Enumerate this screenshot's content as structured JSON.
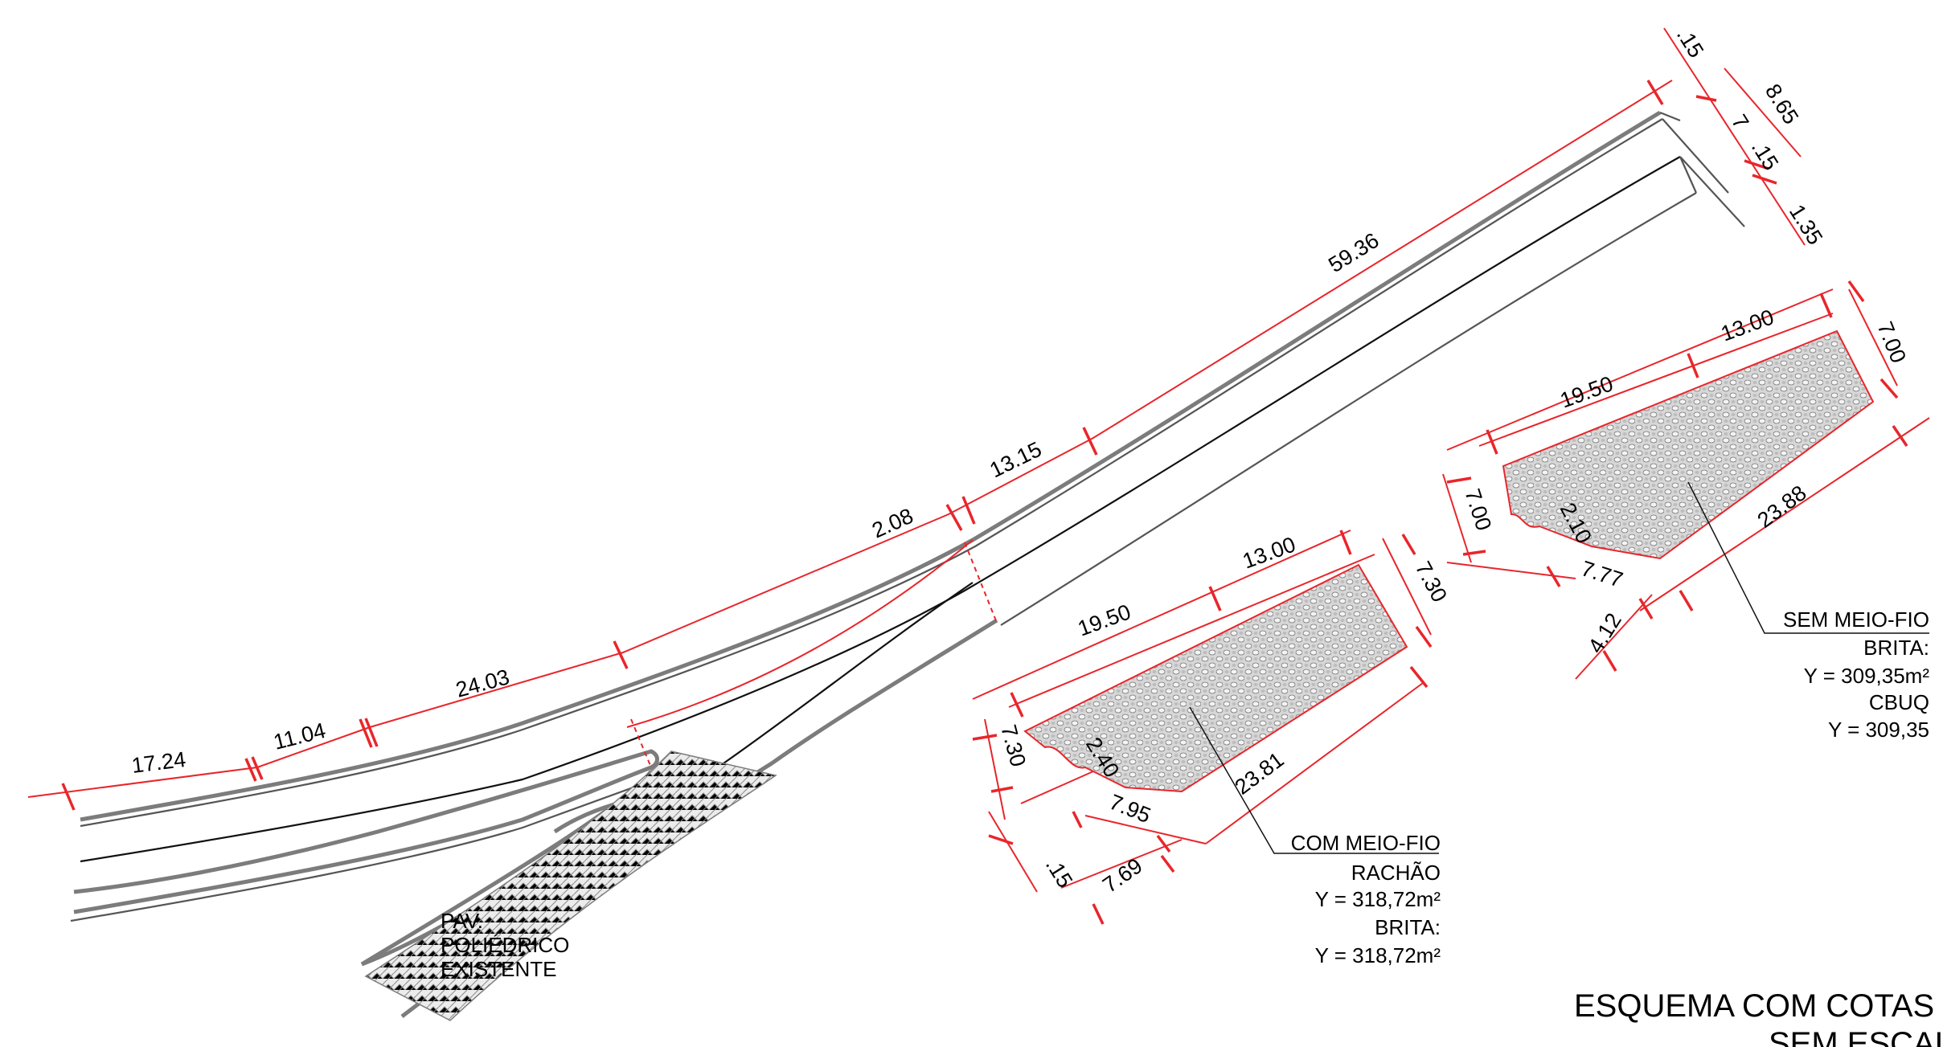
{
  "title": "ESQUEMA COM COTAS",
  "subtitle": "SEM ESCALA",
  "road_dimensions": [
    "17.24",
    "11.04",
    "24.03",
    "2.08",
    "13.15",
    "59.36",
    ".15",
    "8.65",
    "7",
    ".15",
    "1.35"
  ],
  "existing_pavement": [
    "PAV.",
    "POLIÉDRICO",
    "EXISTENTE"
  ],
  "area_com_meio_fio": {
    "dimensions": [
      "13.00",
      "19.50",
      "7.30",
      "23.81",
      "7.30",
      "2.40",
      "7.95",
      "7.69",
      ".15"
    ],
    "labels": [
      "COM MEIO-FIO",
      "RACHÃO",
      "Y = 318,72m²",
      "BRITA:",
      "Y = 318,72m²"
    ]
  },
  "area_sem_meio_fio": {
    "dimensions": [
      "13.00",
      "19.50",
      "7.00",
      "23.88",
      "7.00",
      "2.10",
      "7.77",
      "4.12"
    ],
    "labels": [
      "SEM MEIO-FIO",
      "BRITA:",
      "Y = 309,35m²",
      "CBUQ",
      "Y = 309,35"
    ]
  },
  "colors": {
    "dimension": "#e8262b",
    "road": "#7c7c7c",
    "text": "#000000"
  }
}
